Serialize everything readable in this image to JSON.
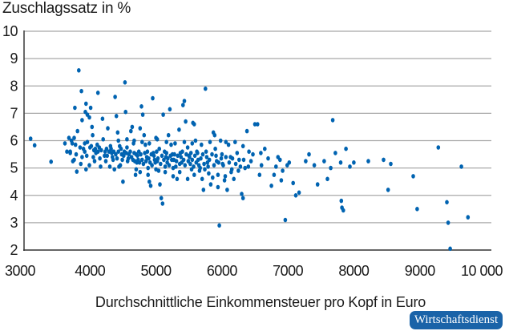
{
  "chart_data": {
    "type": "scatter",
    "title": "",
    "ylabel": "Zuschlagssatz in %",
    "xlabel": "Durchschnittliche Einkommensteuer pro Kopf in Euro",
    "xlim": [
      3000,
      10000
    ],
    "ylim": [
      2,
      10
    ],
    "xticks": [
      3000,
      4000,
      5000,
      6000,
      7000,
      8000,
      9000,
      10000
    ],
    "xtick_labels": [
      "3000",
      "4000",
      "5000",
      "6000",
      "7000",
      "8000",
      "9000",
      "10 000"
    ],
    "yticks": [
      2,
      3,
      4,
      5,
      6,
      7,
      8,
      9,
      10
    ],
    "ytick_labels": [
      "2",
      "3",
      "4",
      "5",
      "6",
      "7",
      "8",
      "9",
      "10"
    ],
    "grid": "horizontal",
    "legend": null,
    "marker_color": "#0063b1",
    "points": [
      [
        3100,
        6.07
      ],
      [
        3160,
        5.83
      ],
      [
        3410,
        5.23
      ],
      [
        3620,
        5.9
      ],
      [
        3680,
        6.1
      ],
      [
        3650,
        5.6
      ],
      [
        3700,
        5.6
      ],
      [
        3720,
        6.0
      ],
      [
        3730,
        5.9
      ],
      [
        3760,
        6.1
      ],
      [
        3780,
        5.85
      ],
      [
        3740,
        5.25
      ],
      [
        3760,
        5.3
      ],
      [
        3810,
        6.35
      ],
      [
        3770,
        7.2
      ],
      [
        3830,
        8.57
      ],
      [
        3870,
        7.81
      ],
      [
        3880,
        6.75
      ],
      [
        3930,
        7.05
      ],
      [
        3940,
        7.35
      ],
      [
        3960,
        6.95
      ],
      [
        3990,
        6.85
      ],
      [
        3900,
        5.7
      ],
      [
        3920,
        5.6
      ],
      [
        3850,
        5.75
      ],
      [
        3800,
        4.87
      ],
      [
        3880,
        5.4
      ],
      [
        3940,
        4.95
      ],
      [
        3990,
        5.1
      ],
      [
        3920,
        5.9
      ],
      [
        3960,
        5.95
      ],
      [
        4000,
        5.75
      ],
      [
        4030,
        6.5
      ],
      [
        4040,
        6.2
      ],
      [
        4080,
        5.7
      ],
      [
        4050,
        5.4
      ],
      [
        4090,
        5.55
      ],
      [
        4120,
        5.6
      ],
      [
        4150,
        5.35
      ],
      [
        4110,
        5.85
      ],
      [
        4010,
        7.2
      ],
      [
        4120,
        7.75
      ],
      [
        4190,
        6.8
      ],
      [
        4200,
        6.05
      ],
      [
        4220,
        5.45
      ],
      [
        4250,
        5.7
      ],
      [
        4270,
        6.45
      ],
      [
        4310,
        5.8
      ],
      [
        4330,
        5.55
      ],
      [
        4350,
        5.3
      ],
      [
        4380,
        7.6
      ],
      [
        4400,
        6.9
      ],
      [
        4420,
        6.3
      ],
      [
        4450,
        5.8
      ],
      [
        4480,
        5.5
      ],
      [
        4460,
        5.1
      ],
      [
        4500,
        4.5
      ],
      [
        4520,
        5.6
      ],
      [
        4540,
        7.05
      ],
      [
        4530,
        8.13
      ],
      [
        4560,
        5.75
      ],
      [
        4580,
        5.35
      ],
      [
        4620,
        6.35
      ],
      [
        4640,
        6.5
      ],
      [
        4660,
        5.9
      ],
      [
        4700,
        5.5
      ],
      [
        4710,
        5.2
      ],
      [
        4690,
        4.75
      ],
      [
        4740,
        5.6
      ],
      [
        4760,
        6.45
      ],
      [
        4780,
        7.25
      ],
      [
        4800,
        6.95
      ],
      [
        4820,
        6.2
      ],
      [
        4840,
        5.85
      ],
      [
        4860,
        5.4
      ],
      [
        4880,
        5.0
      ],
      [
        4900,
        4.5
      ],
      [
        4920,
        4.35
      ],
      [
        4950,
        7.55
      ],
      [
        4960,
        5.55
      ],
      [
        4980,
        5.3
      ],
      [
        5000,
        6.1
      ],
      [
        5020,
        5.25
      ],
      [
        5040,
        4.9
      ],
      [
        5060,
        4.4
      ],
      [
        5080,
        3.9
      ],
      [
        5100,
        3.7
      ],
      [
        5050,
        5.7
      ],
      [
        5110,
        6.95
      ],
      [
        5130,
        5.6
      ],
      [
        5150,
        5.4
      ],
      [
        5170,
        5.2
      ],
      [
        5190,
        6.2
      ],
      [
        5210,
        7.15
      ],
      [
        5230,
        5.85
      ],
      [
        5250,
        5.5
      ],
      [
        5270,
        5.3
      ],
      [
        5300,
        5.05
      ],
      [
        5320,
        4.6
      ],
      [
        5350,
        6.4
      ],
      [
        5370,
        5.55
      ],
      [
        5390,
        5.2
      ],
      [
        5410,
        7.3
      ],
      [
        5430,
        7.45
      ],
      [
        5450,
        6.7
      ],
      [
        5480,
        5.75
      ],
      [
        5500,
        5.45
      ],
      [
        5520,
        5.15
      ],
      [
        5540,
        4.95
      ],
      [
        5560,
        6.65
      ],
      [
        5580,
        6.6
      ],
      [
        5600,
        6.0
      ],
      [
        5620,
        5.6
      ],
      [
        5640,
        5.3
      ],
      [
        5670,
        5.0
      ],
      [
        5700,
        4.6
      ],
      [
        5720,
        4.2
      ],
      [
        5750,
        7.9
      ],
      [
        5760,
        5.6
      ],
      [
        5780,
        5.2
      ],
      [
        5800,
        4.8
      ],
      [
        5830,
        4.4
      ],
      [
        5870,
        6.3
      ],
      [
        5890,
        6.2
      ],
      [
        5900,
        5.7
      ],
      [
        5920,
        5.25
      ],
      [
        5940,
        4.3
      ],
      [
        5960,
        2.9
      ],
      [
        5980,
        6.0
      ],
      [
        6000,
        5.5
      ],
      [
        6020,
        5.1
      ],
      [
        6050,
        4.7
      ],
      [
        6080,
        4.2
      ],
      [
        6100,
        5.85
      ],
      [
        6130,
        5.4
      ],
      [
        6150,
        4.95
      ],
      [
        6180,
        4.6
      ],
      [
        6200,
        5.95
      ],
      [
        6230,
        5.55
      ],
      [
        6260,
        5.3
      ],
      [
        6280,
        5.05
      ],
      [
        6300,
        4.05
      ],
      [
        6320,
        3.9
      ],
      [
        6350,
        5.0
      ],
      [
        6380,
        6.35
      ],
      [
        6410,
        5.6
      ],
      [
        6440,
        5.25
      ],
      [
        6470,
        5.5
      ],
      [
        6500,
        6.6
      ],
      [
        6540,
        6.6
      ],
      [
        6570,
        4.75
      ],
      [
        6600,
        5.1
      ],
      [
        6650,
        5.7
      ],
      [
        6700,
        5.35
      ],
      [
        6750,
        4.35
      ],
      [
        6790,
        4.75
      ],
      [
        6820,
        5.05
      ],
      [
        6850,
        5.4
      ],
      [
        6880,
        5.3
      ],
      [
        6900,
        4.55
      ],
      [
        6920,
        4.9
      ],
      [
        6960,
        3.1
      ],
      [
        6990,
        5.1
      ],
      [
        7020,
        5.2
      ],
      [
        7080,
        4.45
      ],
      [
        7120,
        4.0
      ],
      [
        7170,
        4.1
      ],
      [
        7270,
        5.25
      ],
      [
        7320,
        5.5
      ],
      [
        7400,
        5.1
      ],
      [
        7450,
        4.4
      ],
      [
        7550,
        5.25
      ],
      [
        7600,
        4.6
      ],
      [
        7650,
        5.0
      ],
      [
        7680,
        6.75
      ],
      [
        7720,
        5.55
      ],
      [
        7800,
        5.2
      ],
      [
        7810,
        3.8
      ],
      [
        7820,
        3.55
      ],
      [
        7840,
        3.45
      ],
      [
        7880,
        5.7
      ],
      [
        7940,
        5.05
      ],
      [
        8000,
        5.2
      ],
      [
        8220,
        5.25
      ],
      [
        8450,
        5.3
      ],
      [
        8520,
        4.2
      ],
      [
        8560,
        5.15
      ],
      [
        8900,
        4.7
      ],
      [
        8960,
        3.5
      ],
      [
        9280,
        5.75
      ],
      [
        9410,
        3.75
      ],
      [
        9430,
        3.0
      ],
      [
        9460,
        2.05
      ],
      [
        9630,
        5.05
      ],
      [
        9730,
        3.2
      ],
      [
        4020,
        5.8
      ],
      [
        4060,
        5.65
      ],
      [
        4140,
        5.75
      ],
      [
        4170,
        5.65
      ],
      [
        4230,
        5.6
      ],
      [
        4260,
        5.45
      ],
      [
        4290,
        5.6
      ],
      [
        4320,
        5.7
      ],
      [
        4340,
        5.4
      ],
      [
        4360,
        5.6
      ],
      [
        4390,
        5.5
      ],
      [
        4410,
        5.35
      ],
      [
        4430,
        5.6
      ],
      [
        4470,
        5.7
      ],
      [
        4490,
        5.3
      ],
      [
        4510,
        5.45
      ],
      [
        4550,
        5.55
      ],
      [
        4570,
        5.25
      ],
      [
        4590,
        5.5
      ],
      [
        4610,
        5.6
      ],
      [
        4630,
        5.4
      ],
      [
        4650,
        5.3
      ],
      [
        4670,
        5.55
      ],
      [
        4680,
        5.25
      ],
      [
        4720,
        5.45
      ],
      [
        4730,
        5.3
      ],
      [
        4750,
        5.2
      ],
      [
        4770,
        5.5
      ],
      [
        4790,
        5.3
      ],
      [
        4810,
        5.15
      ],
      [
        4830,
        5.55
      ],
      [
        4850,
        5.25
      ],
      [
        4870,
        5.6
      ],
      [
        4890,
        5.35
      ],
      [
        4910,
        5.2
      ],
      [
        4930,
        5.5
      ],
      [
        4940,
        5.1
      ],
      [
        4970,
        5.45
      ],
      [
        4990,
        5.2
      ],
      [
        5010,
        5.6
      ],
      [
        5030,
        5.35
      ],
      [
        5070,
        5.15
      ],
      [
        5090,
        5.45
      ],
      [
        5120,
        5.3
      ],
      [
        5140,
        5.05
      ],
      [
        5160,
        5.55
      ],
      [
        5180,
        5.35
      ],
      [
        5200,
        5.1
      ],
      [
        5220,
        5.45
      ],
      [
        5240,
        5.3
      ],
      [
        5260,
        5.0
      ],
      [
        5280,
        5.5
      ],
      [
        5310,
        5.25
      ],
      [
        5330,
        5.45
      ],
      [
        5360,
        5.15
      ],
      [
        5380,
        5.4
      ],
      [
        5400,
        5.6
      ],
      [
        5420,
        5.3
      ],
      [
        5440,
        5.1
      ],
      [
        5460,
        5.5
      ],
      [
        5490,
        5.25
      ],
      [
        5510,
        5.4
      ],
      [
        5530,
        5.55
      ],
      [
        5550,
        5.3
      ],
      [
        5570,
        5.05
      ],
      [
        5590,
        5.45
      ],
      [
        5610,
        5.2
      ],
      [
        5630,
        5.55
      ],
      [
        5650,
        5.1
      ],
      [
        5680,
        5.35
      ],
      [
        5710,
        5.5
      ],
      [
        5730,
        5.15
      ],
      [
        5770,
        5.4
      ],
      [
        5790,
        5.05
      ],
      [
        5810,
        5.3
      ],
      [
        5850,
        5.5
      ],
      [
        5880,
        5.1
      ],
      [
        5910,
        5.45
      ],
      [
        5950,
        5.2
      ],
      [
        5990,
        5.35
      ],
      [
        6010,
        5.15
      ],
      [
        6060,
        5.4
      ],
      [
        6110,
        5.2
      ],
      [
        6160,
        5.35
      ],
      [
        6210,
        5.15
      ],
      [
        6250,
        4.9
      ],
      [
        6330,
        5.3
      ],
      [
        6400,
        5.05
      ],
      [
        4700,
        4.95
      ],
      [
        4760,
        4.85
      ],
      [
        4880,
        4.75
      ],
      [
        5000,
        4.95
      ],
      [
        5140,
        4.85
      ],
      [
        5260,
        4.7
      ],
      [
        5360,
        4.85
      ],
      [
        5480,
        4.6
      ],
      [
        5580,
        4.75
      ],
      [
        5660,
        4.9
      ],
      [
        5740,
        4.95
      ],
      [
        5860,
        4.65
      ],
      [
        5940,
        4.75
      ],
      [
        6040,
        4.55
      ],
      [
        6140,
        4.85
      ],
      [
        4430,
        6.0
      ],
      [
        4560,
        6.05
      ],
      [
        4670,
        6.0
      ],
      [
        4790,
        5.95
      ],
      [
        4900,
        5.9
      ],
      [
        5020,
        6.05
      ],
      [
        5160,
        5.95
      ],
      [
        5290,
        5.9
      ],
      [
        5430,
        5.95
      ],
      [
        5550,
        5.9
      ],
      [
        5690,
        5.85
      ],
      [
        5820,
        5.95
      ],
      [
        6060,
        5.95
      ],
      [
        6320,
        5.8
      ],
      [
        6590,
        5.55
      ],
      [
        3700,
        5.55
      ],
      [
        3790,
        5.5
      ],
      [
        3860,
        5.15
      ],
      [
        3950,
        5.45
      ],
      [
        4070,
        5.25
      ],
      [
        4160,
        5.05
      ],
      [
        4240,
        5.25
      ],
      [
        4300,
        5.05
      ],
      [
        4370,
        4.95
      ],
      [
        4440,
        5.05
      ]
    ]
  },
  "source_badge": "Wirtschaftsdienst"
}
